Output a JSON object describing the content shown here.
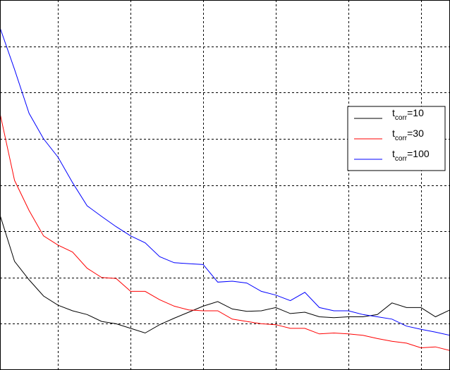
{
  "chart_data": {
    "type": "line",
    "title": "",
    "xlabel": "",
    "ylabel": "",
    "xlim": [
      0,
      31
    ],
    "ylim": [
      0,
      8
    ],
    "x_gridlines": [
      4,
      9,
      14,
      19,
      24,
      29
    ],
    "y_gridlines": [
      1,
      2,
      3,
      4,
      5,
      6,
      7
    ],
    "grid": true,
    "legend": {
      "position": "right"
    },
    "x": [
      0,
      1,
      2,
      3,
      4,
      5,
      6,
      7,
      8,
      9,
      10,
      11,
      12,
      13,
      14,
      15,
      16,
      17,
      18,
      19,
      20,
      21,
      22,
      23,
      24,
      25,
      26,
      27,
      28,
      29,
      30,
      31
    ],
    "series": [
      {
        "name_main": "t",
        "name_sub": "corr",
        "name_suffix": "=10",
        "color": "#000000",
        "values": [
          3.35,
          2.35,
          1.95,
          1.6,
          1.4,
          1.28,
          1.2,
          1.05,
          1.0,
          0.9,
          0.8,
          0.98,
          1.12,
          1.25,
          1.38,
          1.48,
          1.32,
          1.27,
          1.28,
          1.35,
          1.22,
          1.25,
          1.15,
          1.13,
          1.15,
          1.15,
          1.2,
          1.45,
          1.35,
          1.35,
          1.15,
          1.3
        ]
      },
      {
        "name_main": "t",
        "name_sub": "corr",
        "name_suffix": "=30",
        "color": "#ff0000",
        "values": [
          5.55,
          4.1,
          3.45,
          2.9,
          2.7,
          2.55,
          2.2,
          2.0,
          1.98,
          1.7,
          1.7,
          1.52,
          1.38,
          1.3,
          1.28,
          1.28,
          1.1,
          1.05,
          1.0,
          0.98,
          0.9,
          0.9,
          0.78,
          0.8,
          0.78,
          0.75,
          0.68,
          0.62,
          0.58,
          0.48,
          0.5,
          0.42
        ]
      },
      {
        "name_main": "t",
        "name_sub": "corr",
        "name_suffix": "=100",
        "color": "#0000ff",
        "values": [
          7.4,
          6.5,
          5.55,
          5.0,
          4.6,
          4.05,
          3.55,
          3.32,
          3.1,
          2.9,
          2.75,
          2.45,
          2.32,
          2.3,
          2.28,
          1.9,
          1.92,
          1.88,
          1.7,
          1.62,
          1.5,
          1.68,
          1.35,
          1.28,
          1.28,
          1.2,
          1.15,
          1.1,
          0.95,
          0.88,
          0.82,
          0.75
        ]
      }
    ]
  }
}
